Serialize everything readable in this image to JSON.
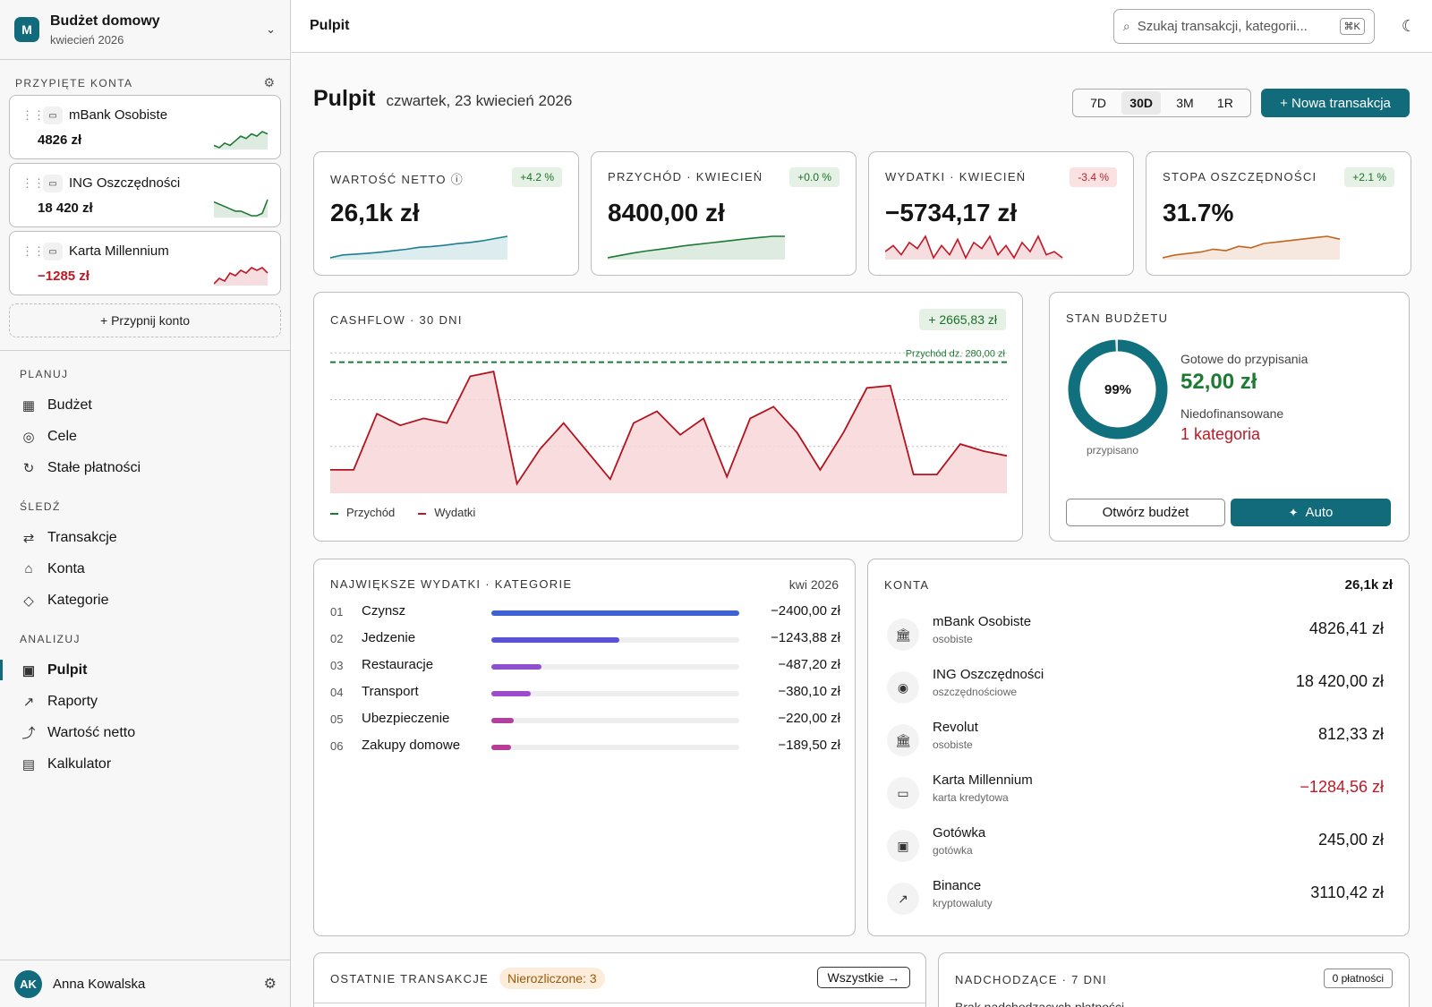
{
  "workspace": {
    "initial": "M",
    "name": "Budżet domowy",
    "period": "kwiecień 2026"
  },
  "pinned": {
    "label": "PRZYPIĘTE KONTA",
    "accounts": [
      {
        "name": "mBank Osobiste",
        "value": "4826 zł",
        "color": "#1f7a35",
        "icon": "wallet-icon"
      },
      {
        "name": "ING Oszczędności",
        "value": "18 420 zł",
        "color": "#1f7a35",
        "icon": "piggy-bank-icon"
      },
      {
        "name": "Karta Millennium",
        "value": "−1285 zł",
        "color": "#c01825",
        "icon": "credit-card-icon"
      }
    ],
    "add_label": "+ Przypnij konto"
  },
  "nav": {
    "plan_label": "PLANUJ",
    "plan": [
      {
        "label": "Budżet",
        "icon": "▦"
      },
      {
        "label": "Cele",
        "icon": "◎"
      },
      {
        "label": "Stałe płatności",
        "icon": "↻"
      }
    ],
    "track_label": "ŚLEDŹ",
    "track": [
      {
        "label": "Transakcje",
        "icon": "⇄"
      },
      {
        "label": "Konta",
        "icon": "⌂"
      },
      {
        "label": "Kategorie",
        "icon": "◇"
      }
    ],
    "analyze_label": "ANALIZUJ",
    "analyze": [
      {
        "label": "Pulpit",
        "icon": "▣",
        "active": true
      },
      {
        "label": "Raporty",
        "icon": "↗"
      },
      {
        "label": "Wartość netto",
        "icon": "⤴"
      },
      {
        "label": "Kalkulator",
        "icon": "▤"
      }
    ]
  },
  "user": {
    "initials": "AK",
    "name": "Anna Kowalska"
  },
  "topbar": {
    "title": "Pulpit",
    "search_placeholder": "Szukaj transakcji, kategorii...",
    "search_kbd": "⌘K"
  },
  "header": {
    "title": "Pulpit",
    "date": "czwartek, 23 kwiecień 2026",
    "ranges": [
      "7D",
      "30D",
      "3M",
      "1R"
    ],
    "active_range": "30D",
    "new_button": "+ Nowa transakcja"
  },
  "kpis": [
    {
      "label": "WARTOŚĆ NETTO ⓘ",
      "badge": "+4.2 %",
      "badge_type": "green",
      "value": "26,1k zł",
      "color": "#1c7f91",
      "spark": [
        2,
        3,
        3.3,
        3.6,
        4,
        4.5,
        5,
        5.7,
        6,
        6.4,
        7,
        7.4,
        8,
        8.8,
        9.6
      ]
    },
    {
      "label": "PRZYCHÓD · KWIECIEŃ",
      "badge": "+0.0 %",
      "badge_type": "green",
      "value": "8400,00 zł",
      "color": "#1d7a33",
      "spark": [
        1,
        2,
        3,
        3.8,
        4.5,
        5.2,
        6,
        6.6,
        7.2,
        7.8,
        8.4,
        9,
        9.5,
        10,
        10
      ]
    },
    {
      "label": "WYDATKI · KWIECIEŃ",
      "badge": "-3.4 %",
      "badge_type": "red",
      "value": "−5734,17 zł",
      "color": "#c01825",
      "spark": [
        4,
        6,
        3,
        7,
        5,
        9,
        2,
        6,
        3,
        8,
        2,
        7,
        5,
        9,
        3,
        6,
        2,
        7,
        4,
        9,
        3,
        4,
        2
      ]
    },
    {
      "label": "STOPA OSZCZĘDNOŚCI",
      "badge": "+2.1 %",
      "badge_type": "green",
      "value": "31.7%",
      "color": "#c2651f",
      "spark": [
        1,
        2,
        2.5,
        3,
        4,
        3.5,
        5,
        4.5,
        6,
        6.5,
        7,
        7.5,
        8,
        8.5,
        7.5
      ]
    }
  ],
  "cashflow": {
    "label": "CASHFLOW · 30 DNI",
    "badge": "+ 2665,83 zł",
    "income_line_label": "Przychód dz. 280,00 zł",
    "legend_income": "Przychód",
    "legend_expense": "Wydatki"
  },
  "chart_data": {
    "type": "area",
    "title": "CASHFLOW · 30 DNI",
    "series": [
      {
        "name": "Przychód",
        "values": [
          280,
          280,
          280,
          280,
          280,
          280,
          280,
          280,
          280,
          280,
          280,
          280,
          280,
          280,
          280,
          280,
          280,
          280,
          280,
          280,
          280,
          280,
          280,
          280,
          280,
          280,
          280,
          280,
          280,
          280
        ]
      },
      {
        "name": "Wydatki",
        "values": [
          50,
          50,
          170,
          145,
          160,
          150,
          250,
          260,
          20,
          95,
          150,
          90,
          30,
          150,
          175,
          125,
          160,
          35,
          160,
          185,
          130,
          50,
          130,
          225,
          230,
          40,
          40,
          105,
          90,
          80
        ]
      }
    ],
    "ylim": [
      0,
      310
    ],
    "grid": true,
    "legend": "bottom-left"
  },
  "budget": {
    "label": "STAN BUDŻETU",
    "percent_text": "99%",
    "percent": 99,
    "caption": "przypisano",
    "ready_label": "Gotowe do przypisania",
    "ready_value": "52,00 zł",
    "under_label": "Niedofinansowane",
    "under_value": "1 kategoria",
    "open_button": "Otwórz budżet",
    "auto_button": "Auto"
  },
  "top_expenses": {
    "label": "NAJWIĘKSZE WYDATKI · KATEGORIE",
    "period": "kwi 2026",
    "items": [
      {
        "rank": "01",
        "name": "Czynsz",
        "value": "−2400,00 zł",
        "amount": 2400,
        "color": "#3f62d2"
      },
      {
        "rank": "02",
        "name": "Jedzenie",
        "value": "−1243,88 zł",
        "amount": 1243.88,
        "color": "#5a52d6"
      },
      {
        "rank": "03",
        "name": "Restauracje",
        "value": "−487,20 zł",
        "amount": 487.2,
        "color": "#8e4fd1"
      },
      {
        "rank": "04",
        "name": "Transport",
        "value": "−380,10 zł",
        "amount": 380.1,
        "color": "#9b4bcc"
      },
      {
        "rank": "05",
        "name": "Ubezpieczenie",
        "value": "−220,00 zł",
        "amount": 220,
        "color": "#b0419f"
      },
      {
        "rank": "06",
        "name": "Zakupy domowe",
        "value": "−189,50 zł",
        "amount": 189.5,
        "color": "#b83c93"
      }
    ]
  },
  "accounts": {
    "label": "KONTA",
    "total": "26,1k zł",
    "items": [
      {
        "name": "mBank Osobiste",
        "type": "osobiste",
        "value": "4826,41 zł",
        "icon": "🏛",
        "negative": false
      },
      {
        "name": "ING Oszczędności",
        "type": "oszczędnościowe",
        "value": "18 420,00 zł",
        "icon": "◉",
        "negative": false
      },
      {
        "name": "Revolut",
        "type": "osobiste",
        "value": "812,33 zł",
        "icon": "🏛",
        "negative": false
      },
      {
        "name": "Karta Millennium",
        "type": "karta kredytowa",
        "value": "−1284,56 zł",
        "icon": "▭",
        "negative": true
      },
      {
        "name": "Gotówka",
        "type": "gotówka",
        "value": "245,00 zł",
        "icon": "▣",
        "negative": false
      },
      {
        "name": "Binance",
        "type": "kryptowaluty",
        "value": "3110,42 zł",
        "icon": "↗",
        "negative": false
      }
    ]
  },
  "recent": {
    "label": "OSTATNIE TRANSAKCJE",
    "badge": "Nierozliczone: 3",
    "all_button": "Wszystkie →"
  },
  "upcoming": {
    "label": "NADCHODZĄCE · 7 DNI",
    "badge": "0 płatności",
    "empty_text": "Brak nadchodzących płatności"
  }
}
